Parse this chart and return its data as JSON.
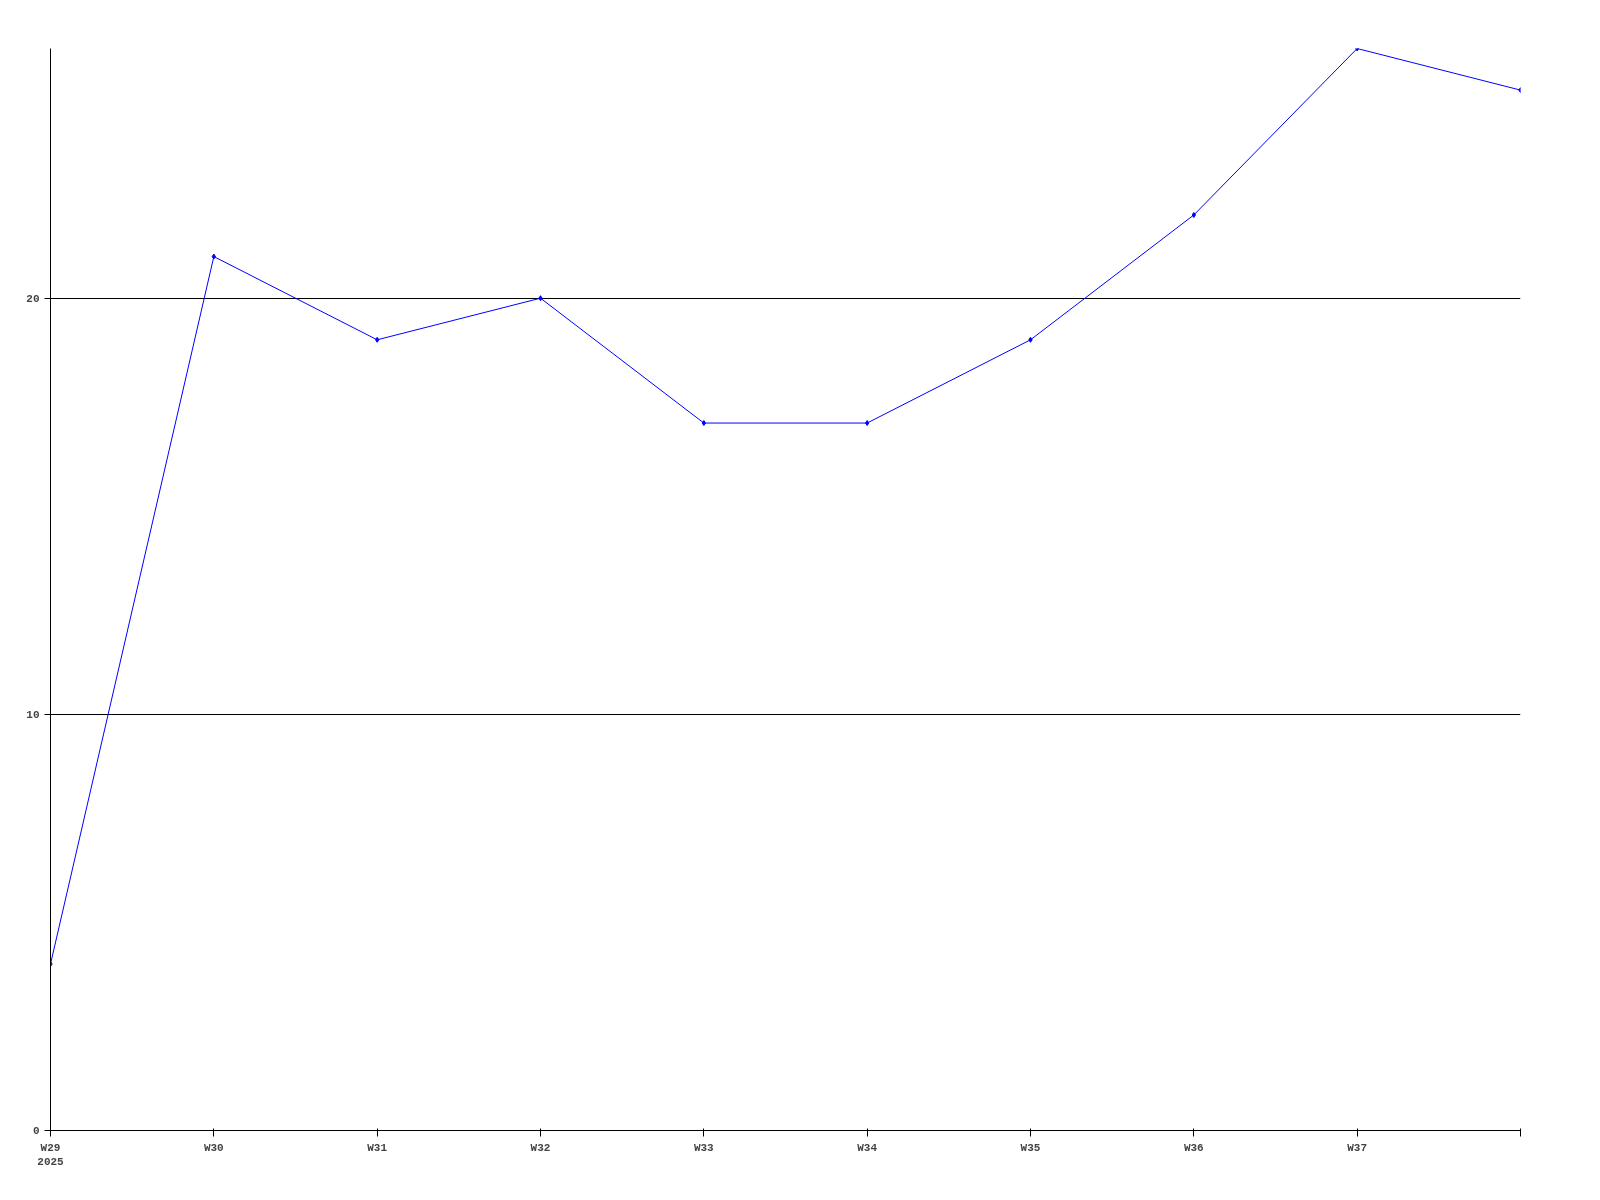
{
  "chart_data": {
    "type": "line",
    "categories": [
      "W29\n2025",
      "W30",
      "W31",
      "W32",
      "W33",
      "W34",
      "W35",
      "W36",
      "W37",
      null
    ],
    "series": [
      {
        "color": "#0000ff",
        "values": [
          4,
          21,
          19,
          20,
          17,
          17,
          19,
          22,
          26,
          25
        ]
      }
    ],
    "ylim": [
      0,
      26
    ],
    "yticks": [
      0,
      10,
      20
    ],
    "grid": "y",
    "marker": "diamond",
    "line_style": "solid"
  }
}
